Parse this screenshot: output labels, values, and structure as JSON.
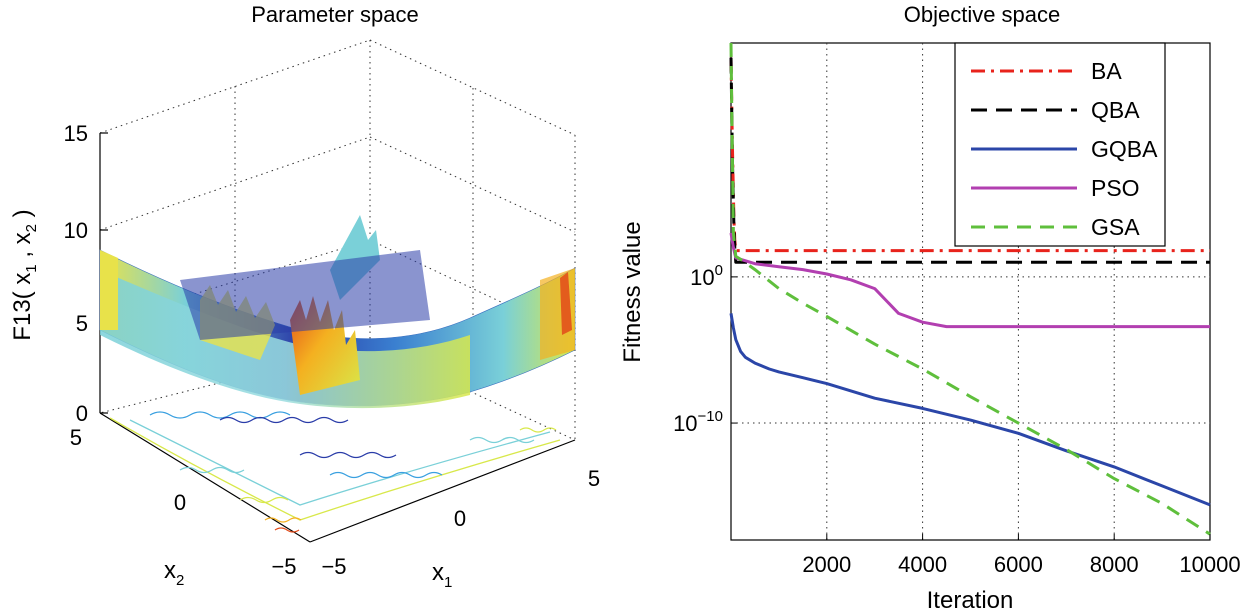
{
  "chart_data": [
    {
      "type": "surface",
      "title": "Parameter space",
      "function_label": "F13",
      "zlabel_parts": [
        "F13( x",
        "1",
        " , x",
        "2",
        " )"
      ],
      "x1_label": "x",
      "x1_sub": "1",
      "x2_label": "x",
      "x2_sub": "2",
      "z_ticks": [
        "0",
        "5",
        "10",
        "15"
      ],
      "x1_ticks": [
        "−5",
        "0",
        "5"
      ],
      "x2_ticks": [
        "−5",
        "0",
        "5"
      ],
      "xlim": [
        -5,
        5
      ],
      "ylim": [
        -5,
        5
      ],
      "zlim": [
        0,
        15
      ],
      "grid": true,
      "colormap": [
        "#1f2f9e",
        "#3aa0e0",
        "#7ad0d8",
        "#d8e84a",
        "#f4b020",
        "#e24a1a"
      ]
    },
    {
      "type": "line",
      "title": "Objective space",
      "xlabel": "Iteration",
      "ylabel": "Fitness value",
      "yscale": "log",
      "xlim": [
        0,
        10000
      ],
      "ylim_log10": [
        -18,
        16
      ],
      "x_ticks": [
        "2000",
        "4000",
        "6000",
        "8000",
        "10000"
      ],
      "x_tick_values": [
        2000,
        4000,
        6000,
        8000,
        10000
      ],
      "y_tick_base": "10",
      "y_tick_exponents": [
        "0",
        "−10"
      ],
      "y_tick_values_log10": [
        0,
        -10
      ],
      "grid": true,
      "legend_position": "top-right",
      "series": [
        {
          "name": "BA",
          "color": "#e8231c",
          "dash": "14 6 3 6",
          "x": [
            0,
            30,
            60,
            80,
            100,
            10000
          ],
          "log10_y": [
            15,
            9,
            4,
            2.5,
            1.8,
            1.8
          ]
        },
        {
          "name": "QBA",
          "color": "#000000",
          "dash": "16 9",
          "x": [
            0,
            30,
            60,
            80,
            100,
            10000
          ],
          "log10_y": [
            15,
            8,
            3.5,
            2,
            1.0,
            1.0
          ]
        },
        {
          "name": "GQBA",
          "color": "#2b46a8",
          "dash": "",
          "x": [
            0,
            50,
            100,
            200,
            300,
            500,
            800,
            1000,
            1500,
            2000,
            3000,
            4000,
            5000,
            6000,
            7000,
            8000,
            9000,
            10000
          ],
          "log10_y": [
            -2.5,
            -3.5,
            -4.3,
            -5.1,
            -5.5,
            -5.9,
            -6.3,
            -6.5,
            -6.9,
            -7.3,
            -8.3,
            -9,
            -9.8,
            -10.7,
            -11.9,
            -13,
            -14.3,
            -15.6
          ]
        },
        {
          "name": "PSO",
          "color": "#b23fb0",
          "dash": "",
          "x": [
            0,
            50,
            100,
            200,
            500,
            1000,
            1500,
            2000,
            2500,
            3000,
            3500,
            4000,
            4500,
            10000
          ],
          "log10_y": [
            3,
            2,
            1.3,
            1.2,
            0.9,
            0.7,
            0.5,
            0.2,
            -0.2,
            -0.8,
            -2.5,
            -3.1,
            -3.4,
            -3.4
          ]
        },
        {
          "name": "GSA",
          "color": "#5fbf3c",
          "dash": "14 9",
          "x": [
            0,
            20,
            50,
            100,
            200,
            500,
            1000,
            1500,
            2000,
            3000,
            4000,
            5000,
            6000,
            7000,
            8000,
            9000,
            10000
          ],
          "log10_y": [
            16,
            10,
            3,
            1.4,
            1.2,
            0.5,
            -0.8,
            -1.8,
            -2.7,
            -4.6,
            -6.3,
            -8.2,
            -10,
            -11.8,
            -13.8,
            -15.5,
            -17.6
          ]
        }
      ]
    }
  ]
}
